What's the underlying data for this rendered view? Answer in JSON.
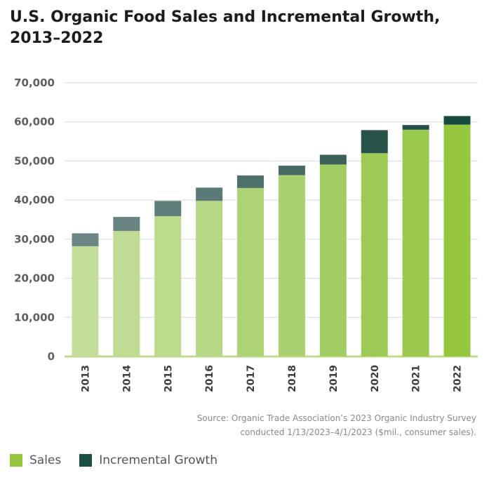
{
  "title": "U.S. Organic Food Sales and Incremental Growth, 2013–2022",
  "source": {
    "line1": "Source: Organic Trade Association’s 2023 Organic Industry Survey",
    "line2": "conducted 1/13/2023–4/1/2023 ($mil., consumer sales)."
  },
  "legend": [
    {
      "label": "Sales",
      "color": "#97c73e"
    },
    {
      "label": "Incremental Growth",
      "color": "#1c4f44"
    }
  ],
  "chart_data": {
    "type": "bar",
    "stacked": true,
    "categories": [
      "2013",
      "2014",
      "2015",
      "2016",
      "2017",
      "2018",
      "2019",
      "2020",
      "2021",
      "2022"
    ],
    "series": [
      {
        "name": "Sales",
        "values": [
          28200,
          32100,
          35900,
          39800,
          43100,
          46400,
          49100,
          52000,
          58000,
          59300
        ]
      },
      {
        "name": "Incremental Growth",
        "values": [
          3300,
          3600,
          3900,
          3400,
          3200,
          2400,
          2500,
          5900,
          1200,
          2200
        ]
      }
    ],
    "ylim": [
      0,
      70000
    ],
    "yticks": [
      "0",
      "10,000",
      "20,000",
      "30,000",
      "40,000",
      "50,000",
      "60,000",
      "70,000"
    ],
    "ytick_values": [
      0,
      10000,
      20000,
      30000,
      40000,
      50000,
      60000,
      70000
    ],
    "grid": true,
    "sales_colors": [
      "#c3de98",
      "#c0dc93",
      "#bbda8b",
      "#b6d785",
      "#add376",
      "#a9d16f",
      "#a2cd62",
      "#9dca55",
      "#9ac94f",
      "#94c63e"
    ],
    "growth_colors": [
      "#6b8684",
      "#678482",
      "#5f7e7b",
      "#5a7a77",
      "#4d706b",
      "#466a65",
      "#3b615a",
      "#28534a",
      "#245048",
      "#184b3f"
    ]
  }
}
